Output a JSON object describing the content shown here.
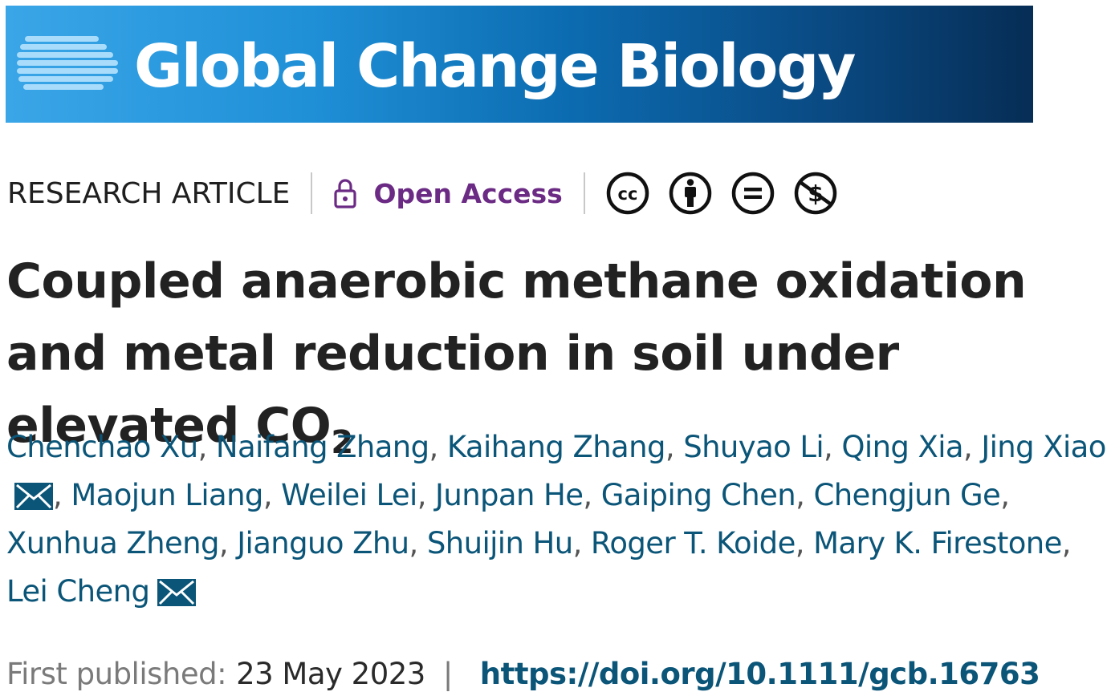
{
  "banner": {
    "journal_name": "Global Change Biology",
    "logo_icon": "globe-stripes-icon"
  },
  "meta": {
    "article_type": "RESEARCH ARTICLE",
    "open_access_label": "Open Access",
    "open_access_icon": "unlock-icon",
    "open_access_color": "#6b2a84",
    "licenses": [
      "cc-icon",
      "by-icon",
      "nd-icon",
      "nc-icon"
    ]
  },
  "title": {
    "main": "Coupled anaerobic methane oxidation and metal reduction in soil under elevated CO",
    "subscript": "2"
  },
  "authors": {
    "link_color": "#0b5578",
    "list": [
      {
        "name": "Chenchao Xu",
        "mail": false
      },
      {
        "name": "Naifang Zhang",
        "mail": false
      },
      {
        "name": "Kaihang Zhang",
        "mail": false
      },
      {
        "name": "Shuyao Li",
        "mail": false
      },
      {
        "name": "Qing Xia",
        "mail": false
      },
      {
        "name": "Jing Xiao",
        "mail": true
      },
      {
        "name": "Maojun Liang",
        "mail": false
      },
      {
        "name": "Weilei Lei",
        "mail": false
      },
      {
        "name": "Junpan He",
        "mail": false
      },
      {
        "name": "Gaiping Chen",
        "mail": false
      },
      {
        "name": "Chengjun Ge",
        "mail": false
      },
      {
        "name": "Xunhua Zheng",
        "mail": false
      },
      {
        "name": "Jianguo Zhu",
        "mail": false
      },
      {
        "name": "Shuijin Hu",
        "mail": false
      },
      {
        "name": "Roger T. Koide",
        "mail": false
      },
      {
        "name": "Mary K. Firestone",
        "mail": false
      },
      {
        "name": "Lei Cheng",
        "mail": true
      }
    ]
  },
  "publication": {
    "label": "First published:",
    "date": "23 May 2023",
    "separator": "|",
    "doi": "https://doi.org/10.1111/gcb.16763"
  }
}
